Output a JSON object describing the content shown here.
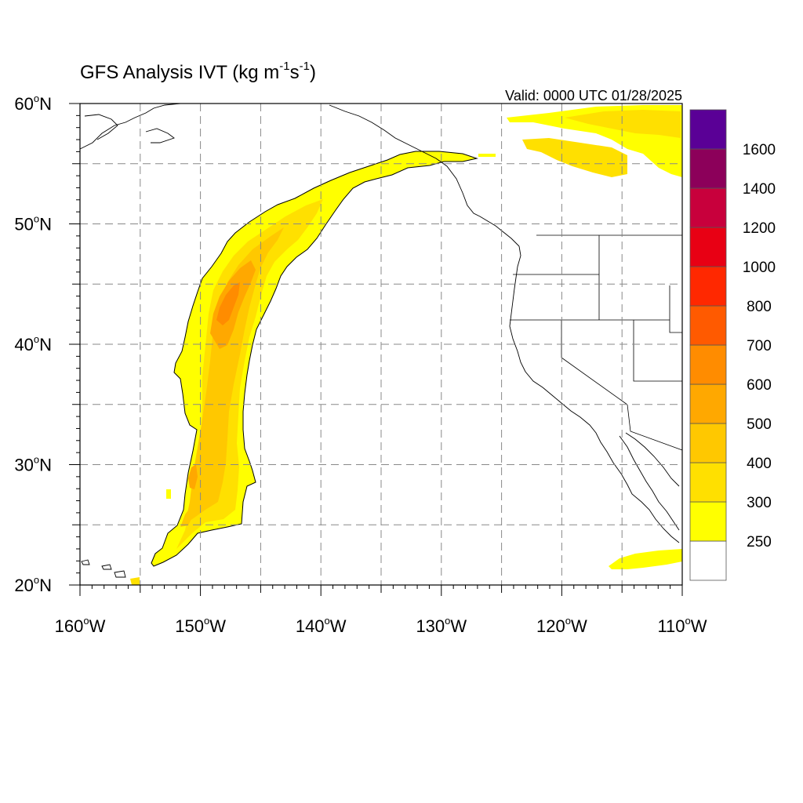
{
  "title": {
    "prefix": "GFS Analysis IVT (kg m",
    "exp1": "-1",
    "mid": "s",
    "exp2": "-1",
    "suffix": ")"
  },
  "valid_label": "Valid: 0000 UTC 01/28/2025",
  "map": {
    "projection": "cylindrical-equidistant",
    "lon_range": [
      -160,
      -110
    ],
    "lat_range": [
      20,
      60
    ],
    "lon_ticks": [
      {
        "value": -160,
        "num": "160",
        "hemi": "W"
      },
      {
        "value": -150,
        "num": "150",
        "hemi": "W"
      },
      {
        "value": -140,
        "num": "140",
        "hemi": "W"
      },
      {
        "value": -130,
        "num": "130",
        "hemi": "W"
      },
      {
        "value": -120,
        "num": "120",
        "hemi": "W"
      },
      {
        "value": -110,
        "num": "110",
        "hemi": "W"
      }
    ],
    "lat_ticks": [
      {
        "value": 20,
        "num": "20",
        "hemi": "N"
      },
      {
        "value": 30,
        "num": "30",
        "hemi": "N"
      },
      {
        "value": 40,
        "num": "40",
        "hemi": "N"
      },
      {
        "value": 50,
        "num": "50",
        "hemi": "N"
      },
      {
        "value": 60,
        "num": "60",
        "hemi": "N"
      }
    ],
    "gridlines_dashed_every_deg": 5,
    "minor_ticks_every_deg": 1
  },
  "colorbar": {
    "levels": [
      "250",
      "300",
      "400",
      "500",
      "600",
      "700",
      "800",
      "1000",
      "1200",
      "1400",
      "1600"
    ],
    "colors": [
      "#ffffff",
      "#ffff00",
      "#ffe000",
      "#ffc800",
      "#ffa800",
      "#ff8c00",
      "#ff5a00",
      "#ff2800",
      "#e80014",
      "#c8003c",
      "#8c005a",
      "#5a0096"
    ]
  },
  "colors": {
    "land_outline": "#000000",
    "grid": "#888888",
    "ivt_250": "#ffff00",
    "ivt_300": "#ffe000",
    "ivt_400": "#ffc800",
    "ivt_500": "#ffa800",
    "ivt_600": "#ff8c00",
    "ivt_700": "#ff5a00"
  }
}
